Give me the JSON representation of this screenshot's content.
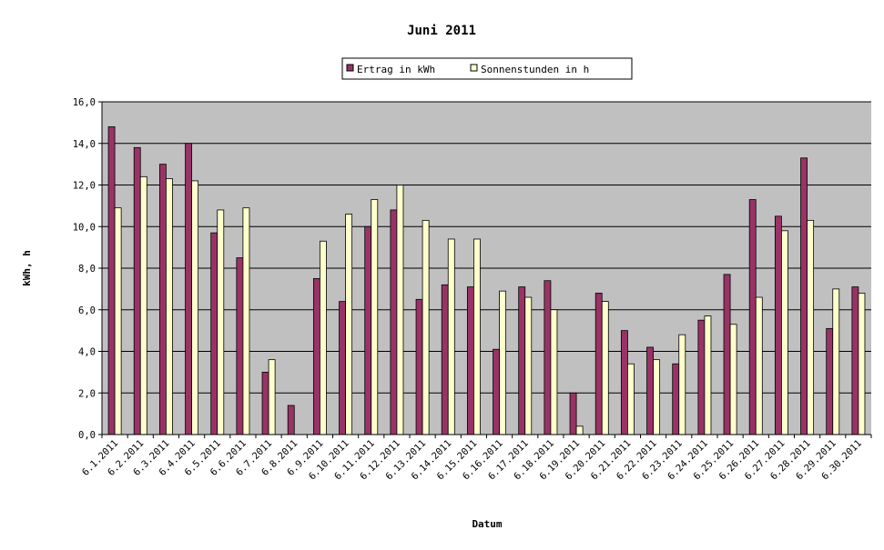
{
  "chart_data": {
    "type": "bar",
    "title": "Juni 2011",
    "xlabel": "Datum",
    "ylabel": "kWh, h",
    "ylim": [
      0,
      16
    ],
    "ytick_values": [
      0,
      2,
      4,
      6,
      8,
      10,
      12,
      14,
      16
    ],
    "ytick_labels": [
      "0,0",
      "2,0",
      "4,0",
      "6,0",
      "8,0",
      "10,0",
      "12,0",
      "14,0",
      "16,0"
    ],
    "grid": true,
    "legend_position": "top-center",
    "categories": [
      "6.1.2011",
      "6.2.2011",
      "6.3.2011",
      "6.4.2011",
      "6.5.2011",
      "6.6.2011",
      "6.7.2011",
      "6.8.2011",
      "6.9.2011",
      "6.10.2011",
      "6.11.2011",
      "6.12.2011",
      "6.13.2011",
      "6.14.2011",
      "6.15.2011",
      "6.16.2011",
      "6.17.2011",
      "6.18.2011",
      "6.19.2011",
      "6.20.2011",
      "6.21.2011",
      "6.22.2011",
      "6.23.2011",
      "6.24.2011",
      "6.25.2011",
      "6.26.2011",
      "6.27.2011",
      "6.28.2011",
      "6.29.2011",
      "6.30.2011"
    ],
    "series": [
      {
        "name": "Ertrag in kWh",
        "color": "#993366",
        "values": [
          14.8,
          13.8,
          13.0,
          14.0,
          9.7,
          8.5,
          3.0,
          1.4,
          7.5,
          6.4,
          10.0,
          10.8,
          6.5,
          7.2,
          7.1,
          4.1,
          7.1,
          7.4,
          2.0,
          6.8,
          5.0,
          4.2,
          3.4,
          5.5,
          7.7,
          11.3,
          10.5,
          13.3,
          5.1,
          7.1
        ]
      },
      {
        "name": "Sonnenstunden in h",
        "color": "#ffffcc",
        "values": [
          10.9,
          12.4,
          12.3,
          12.2,
          10.8,
          10.9,
          3.6,
          0.0,
          9.3,
          10.6,
          11.3,
          12.0,
          10.3,
          9.4,
          9.4,
          6.9,
          6.6,
          6.0,
          0.4,
          6.4,
          3.4,
          3.6,
          4.8,
          5.7,
          5.3,
          6.6,
          9.8,
          10.3,
          7.0,
          6.8
        ]
      }
    ],
    "plot_background": "#c0c0c0"
  }
}
